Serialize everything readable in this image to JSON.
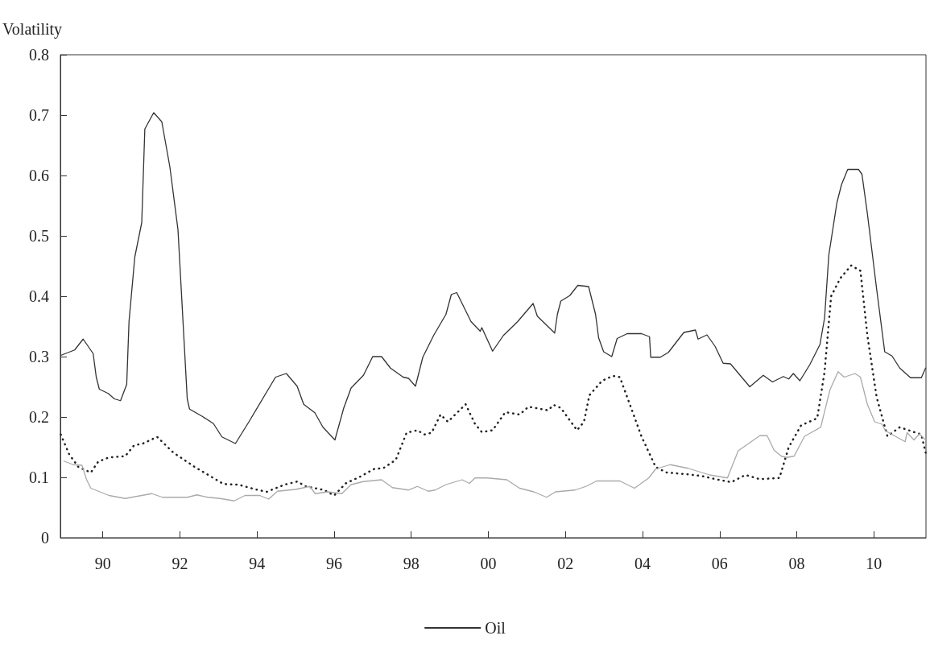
{
  "chart_data": {
    "type": "line",
    "ylabel": "Volatility",
    "xlim": [
      1988.9,
      2011.35
    ],
    "xticks": [
      {
        "value": 1990,
        "label": "90"
      },
      {
        "value": 1992,
        "label": "92"
      },
      {
        "value": 1994,
        "label": "94"
      },
      {
        "value": 1996,
        "label": "96"
      },
      {
        "value": 1998,
        "label": "98"
      },
      {
        "value": 2000,
        "label": "00"
      },
      {
        "value": 2002,
        "label": "02"
      },
      {
        "value": 2004,
        "label": "04"
      },
      {
        "value": 2006,
        "label": "06"
      },
      {
        "value": 2008,
        "label": "08"
      },
      {
        "value": 2010,
        "label": "10"
      }
    ],
    "ylim": [
      0,
      0.8
    ],
    "yticks": [
      0,
      0.1,
      0.2,
      0.3,
      0.4,
      0.5,
      0.6,
      0.7,
      0.8
    ],
    "grid": false,
    "legend": "bottom",
    "marker": "none",
    "series": [
      {
        "name": "Oil",
        "color": "#333333",
        "line_style": "solid",
        "x": [
          1988.91,
          1989.27,
          1989.49,
          1989.75,
          1989.83,
          1989.91,
          1990.14,
          1990.3,
          1990.46,
          1990.62,
          1990.68,
          1990.83,
          1991.01,
          1991.09,
          1991.32,
          1991.53,
          1991.74,
          1991.95,
          1992.19,
          1992.25,
          1992.58,
          1992.87,
          1993.09,
          1993.44,
          1993.79,
          1994.48,
          1994.76,
          1995.04,
          1995.21,
          1995.5,
          1995.71,
          1996.02,
          1996.25,
          1996.44,
          1996.76,
          1997.0,
          1997.23,
          1997.46,
          1997.79,
          1997.93,
          1998.11,
          1998.3,
          1998.58,
          1998.9,
          1999.04,
          1999.18,
          1999.55,
          1999.79,
          1999.83,
          2000.11,
          2000.39,
          2000.76,
          2001.16,
          2001.27,
          2001.72,
          2001.79,
          2001.88,
          2002.11,
          2002.32,
          2002.6,
          2002.78,
          2002.86,
          2002.99,
          2003.2,
          2003.34,
          2003.6,
          2003.97,
          2004.18,
          2004.21,
          2004.46,
          2004.67,
          2005.07,
          2005.37,
          2005.44,
          2005.67,
          2005.88,
          2006.09,
          2006.28,
          2006.78,
          2007.13,
          2007.37,
          2007.65,
          2007.79,
          2007.91,
          2008.08,
          2008.34,
          2008.6,
          2008.72,
          2008.83,
          2009.04,
          2009.16,
          2009.32,
          2009.6,
          2009.69,
          2009.83,
          2010.07,
          2010.28,
          2010.47,
          2010.67,
          2010.95,
          2011.23,
          2011.34
        ],
        "values": [
          0.302,
          0.311,
          0.329,
          0.305,
          0.266,
          0.246,
          0.239,
          0.23,
          0.227,
          0.254,
          0.358,
          0.465,
          0.522,
          0.677,
          0.704,
          0.689,
          0.614,
          0.51,
          0.23,
          0.213,
          0.201,
          0.189,
          0.167,
          0.156,
          0.192,
          0.266,
          0.272,
          0.251,
          0.221,
          0.207,
          0.183,
          0.162,
          0.215,
          0.248,
          0.269,
          0.3,
          0.3,
          0.281,
          0.266,
          0.264,
          0.251,
          0.299,
          0.335,
          0.37,
          0.403,
          0.406,
          0.358,
          0.342,
          0.348,
          0.309,
          0.335,
          0.358,
          0.388,
          0.367,
          0.339,
          0.37,
          0.392,
          0.401,
          0.418,
          0.416,
          0.37,
          0.331,
          0.308,
          0.3,
          0.33,
          0.338,
          0.338,
          0.333,
          0.299,
          0.299,
          0.307,
          0.34,
          0.344,
          0.329,
          0.336,
          0.317,
          0.289,
          0.288,
          0.25,
          0.269,
          0.258,
          0.267,
          0.263,
          0.272,
          0.26,
          0.287,
          0.32,
          0.364,
          0.468,
          0.555,
          0.585,
          0.61,
          0.61,
          0.602,
          0.537,
          0.412,
          0.308,
          0.301,
          0.281,
          0.265,
          0.265,
          0.281
        ]
      },
      {
        "color": "#222222",
        "line_style": "dotted",
        "x": [
          1988.91,
          1989.13,
          1989.37,
          1989.69,
          1989.88,
          1990.16,
          1990.58,
          1990.81,
          1991.04,
          1991.41,
          1991.83,
          1992.39,
          1993.13,
          1993.51,
          1993.97,
          1994.25,
          1994.72,
          1995.04,
          1995.27,
          1995.74,
          1996.0,
          1996.3,
          1996.67,
          1997.04,
          1997.27,
          1997.6,
          1997.88,
          1998.16,
          1998.34,
          1998.53,
          1998.76,
          1998.95,
          1999.41,
          1999.65,
          1999.83,
          2000.11,
          2000.44,
          2000.81,
          2001.04,
          2001.55,
          2001.69,
          2001.88,
          2002.3,
          2002.48,
          2002.62,
          2002.95,
          2003.23,
          2003.41,
          2003.6,
          2003.97,
          2004.34,
          2004.62,
          2005.18,
          2005.55,
          2005.97,
          2006.3,
          2006.67,
          2007.04,
          2007.55,
          2007.79,
          2008.11,
          2008.53,
          2008.72,
          2008.89,
          2009.13,
          2009.41,
          2009.65,
          2009.83,
          2010.07,
          2010.35,
          2010.67,
          2011.04,
          2011.23,
          2011.34
        ],
        "values": [
          0.171,
          0.138,
          0.117,
          0.108,
          0.126,
          0.133,
          0.135,
          0.153,
          0.156,
          0.167,
          0.141,
          0.117,
          0.089,
          0.088,
          0.08,
          0.076,
          0.088,
          0.093,
          0.085,
          0.079,
          0.07,
          0.09,
          0.101,
          0.114,
          0.115,
          0.129,
          0.174,
          0.178,
          0.171,
          0.174,
          0.204,
          0.192,
          0.221,
          0.189,
          0.175,
          0.178,
          0.208,
          0.204,
          0.217,
          0.211,
          0.22,
          0.215,
          0.178,
          0.192,
          0.236,
          0.26,
          0.268,
          0.266,
          0.233,
          0.168,
          0.117,
          0.108,
          0.105,
          0.102,
          0.096,
          0.092,
          0.104,
          0.097,
          0.099,
          0.15,
          0.186,
          0.198,
          0.275,
          0.4,
          0.43,
          0.451,
          0.442,
          0.335,
          0.233,
          0.168,
          0.183,
          0.175,
          0.171,
          0.141
        ]
      },
      {
        "color": "#aaaaaa",
        "line_style": "solid",
        "x": [
          1988.99,
          1989.23,
          1989.46,
          1989.58,
          1989.69,
          1990.16,
          1990.58,
          1991.27,
          1991.55,
          1992.2,
          1992.44,
          1992.72,
          1993.04,
          1993.41,
          1993.69,
          1994.07,
          1994.3,
          1994.53,
          1995.0,
          1995.37,
          1995.51,
          1995.84,
          1996.2,
          1996.44,
          1996.76,
          1997.23,
          1997.51,
          1997.93,
          1998.16,
          1998.44,
          1998.62,
          1998.9,
          1999.32,
          1999.51,
          1999.65,
          1999.97,
          2000.48,
          2000.81,
          2001.18,
          2001.51,
          2001.74,
          2002.25,
          2002.53,
          2002.81,
          2003.41,
          2003.79,
          2004.16,
          2004.34,
          2004.72,
          2005.18,
          2005.74,
          2006.2,
          2006.48,
          2007.04,
          2007.23,
          2007.41,
          2007.6,
          2007.74,
          2007.93,
          2008.2,
          2008.62,
          2008.86,
          2009.07,
          2009.23,
          2009.51,
          2009.65,
          2009.83,
          2010.02,
          2010.21,
          2010.3,
          2010.81,
          2010.86,
          2011.04,
          2011.18,
          2011.34
        ],
        "values": [
          0.127,
          0.121,
          0.12,
          0.096,
          0.082,
          0.07,
          0.065,
          0.073,
          0.067,
          0.067,
          0.071,
          0.067,
          0.065,
          0.061,
          0.07,
          0.07,
          0.064,
          0.077,
          0.08,
          0.085,
          0.073,
          0.076,
          0.073,
          0.088,
          0.093,
          0.096,
          0.083,
          0.079,
          0.085,
          0.077,
          0.079,
          0.088,
          0.096,
          0.09,
          0.099,
          0.099,
          0.096,
          0.082,
          0.076,
          0.067,
          0.076,
          0.079,
          0.085,
          0.094,
          0.094,
          0.082,
          0.099,
          0.114,
          0.121,
          0.115,
          0.104,
          0.099,
          0.144,
          0.169,
          0.169,
          0.145,
          0.135,
          0.133,
          0.135,
          0.168,
          0.183,
          0.245,
          0.275,
          0.266,
          0.272,
          0.266,
          0.221,
          0.192,
          0.188,
          0.177,
          0.159,
          0.174,
          0.162,
          0.172,
          0.162
        ]
      }
    ]
  }
}
